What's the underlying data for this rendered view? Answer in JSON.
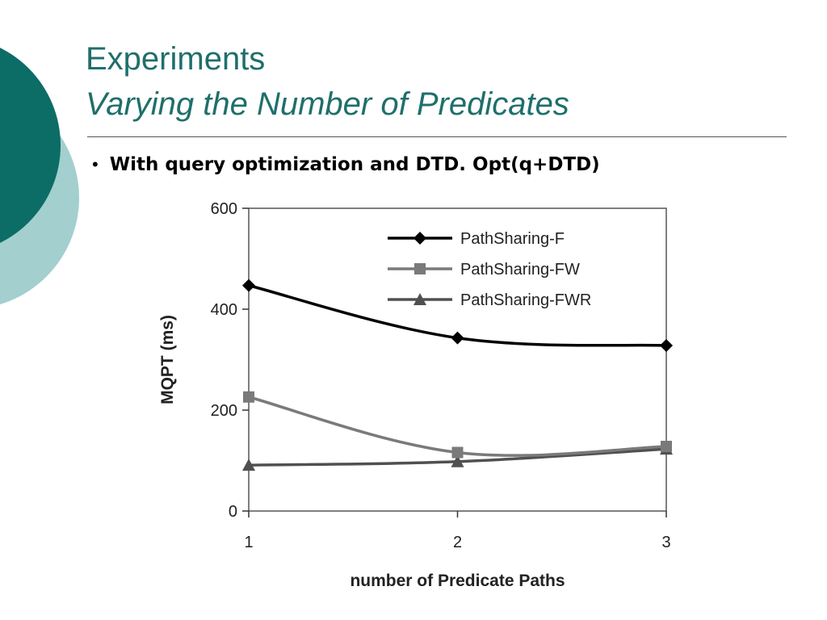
{
  "slide": {
    "title": "Experiments",
    "subtitle": "Varying the Number of Predicates",
    "bullet": "With query optimization and DTD. Opt(q+DTD)"
  },
  "theme": {
    "dark_teal": "#0c6c66",
    "light_teal": "#a3cfcf",
    "title_color": "#1f6f6b"
  },
  "chart_data": {
    "type": "line",
    "x": [
      1,
      2,
      3
    ],
    "xlabel": "number of Predicate Paths",
    "ylabel": "MQPT (ms)",
    "ylim": [
      0,
      600
    ],
    "yticks": [
      "0",
      "200",
      "400",
      "600"
    ],
    "xticks": [
      "1",
      "2",
      "3"
    ],
    "grid": false,
    "legend_position": "top-right",
    "series": [
      {
        "name": "PathSharing-F",
        "values": [
          447,
          343,
          328
        ],
        "color": "#000000",
        "marker": "diamond"
      },
      {
        "name": "PathSharing-FW",
        "values": [
          226,
          116,
          128
        ],
        "color": "#7a7a7a",
        "marker": "square"
      },
      {
        "name": "PathSharing-FWR",
        "values": [
          91,
          98,
          123
        ],
        "color": "#505050",
        "marker": "triangle"
      }
    ]
  }
}
